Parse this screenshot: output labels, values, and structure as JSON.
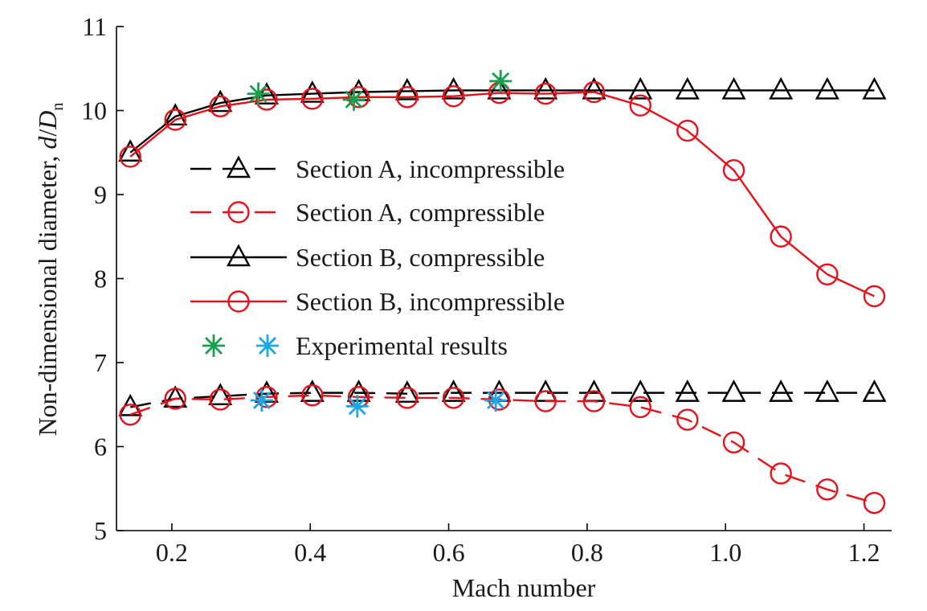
{
  "chart_data": {
    "type": "line",
    "title": "",
    "xlabel": "Mach number",
    "ylabel": "Non-dimensional diameter, ",
    "ylabel_math": {
      "d": "d",
      "slash": "/",
      "D": "D",
      "sub": "n"
    },
    "xlim": [
      0.12,
      1.24
    ],
    "ylim": [
      5,
      11
    ],
    "xticks": [
      0.2,
      0.4,
      0.6,
      0.8,
      1.0,
      1.2
    ],
    "xtick_labels": [
      "0.2",
      "0.4",
      "0.6",
      "0.8",
      "1.0",
      "1.2"
    ],
    "yticks": [
      5,
      6,
      7,
      8,
      9,
      10,
      11
    ],
    "ytick_labels": [
      "5",
      "6",
      "7",
      "8",
      "9",
      "10",
      "11"
    ],
    "grid": false,
    "legend_position": "center-left",
    "colors": {
      "black": "#000000",
      "red": "#e8101a",
      "green": "#19a04e",
      "blue": "#1aa7e6"
    },
    "x": [
      0.14,
      0.205,
      0.27,
      0.337,
      0.403,
      0.47,
      0.54,
      0.607,
      0.673,
      0.74,
      0.81,
      0.877,
      0.945,
      1.012,
      1.08,
      1.147,
      1.215
    ],
    "series": [
      {
        "name": "Section A, incompressible",
        "color": "#000000",
        "marker": "triangle",
        "linestyle": "dashed",
        "values": [
          6.47,
          6.57,
          6.6,
          6.63,
          6.64,
          6.64,
          6.63,
          6.64,
          6.64,
          6.64,
          6.64,
          6.64,
          6.64,
          6.64,
          6.64,
          6.64,
          6.64
        ]
      },
      {
        "name": "Section A, compressible",
        "color": "#e8101a",
        "marker": "circle",
        "linestyle": "dashed",
        "values": [
          6.38,
          6.57,
          6.56,
          6.59,
          6.61,
          6.59,
          6.58,
          6.58,
          6.56,
          6.54,
          6.54,
          6.47,
          6.32,
          6.05,
          5.68,
          5.49,
          5.33
        ]
      },
      {
        "name": "Section B, compressible",
        "color": "#000000",
        "marker": "triangle",
        "linestyle": "solid",
        "values": [
          9.5,
          9.93,
          10.09,
          10.18,
          10.2,
          10.22,
          10.23,
          10.24,
          10.24,
          10.24,
          10.24,
          10.24,
          10.24,
          10.24,
          10.24,
          10.24,
          10.24
        ]
      },
      {
        "name": "Section B, incompressible",
        "color": "#e8101a",
        "marker": "circle",
        "linestyle": "solid",
        "values": [
          9.45,
          9.89,
          10.05,
          10.13,
          10.14,
          10.16,
          10.16,
          10.17,
          10.21,
          10.2,
          10.22,
          10.06,
          9.76,
          9.29,
          8.5,
          8.05,
          7.79
        ]
      }
    ],
    "experimental": {
      "name": "Experimental results",
      "points": [
        {
          "x": 0.325,
          "y": 10.2,
          "color": "#19a04e"
        },
        {
          "x": 0.463,
          "y": 10.13,
          "color": "#19a04e"
        },
        {
          "x": 0.675,
          "y": 10.35,
          "color": "#19a04e"
        },
        {
          "x": 0.33,
          "y": 6.55,
          "color": "#1aa7e6"
        },
        {
          "x": 0.468,
          "y": 6.48,
          "color": "#1aa7e6"
        },
        {
          "x": 0.668,
          "y": 6.55,
          "color": "#1aa7e6"
        }
      ]
    }
  }
}
